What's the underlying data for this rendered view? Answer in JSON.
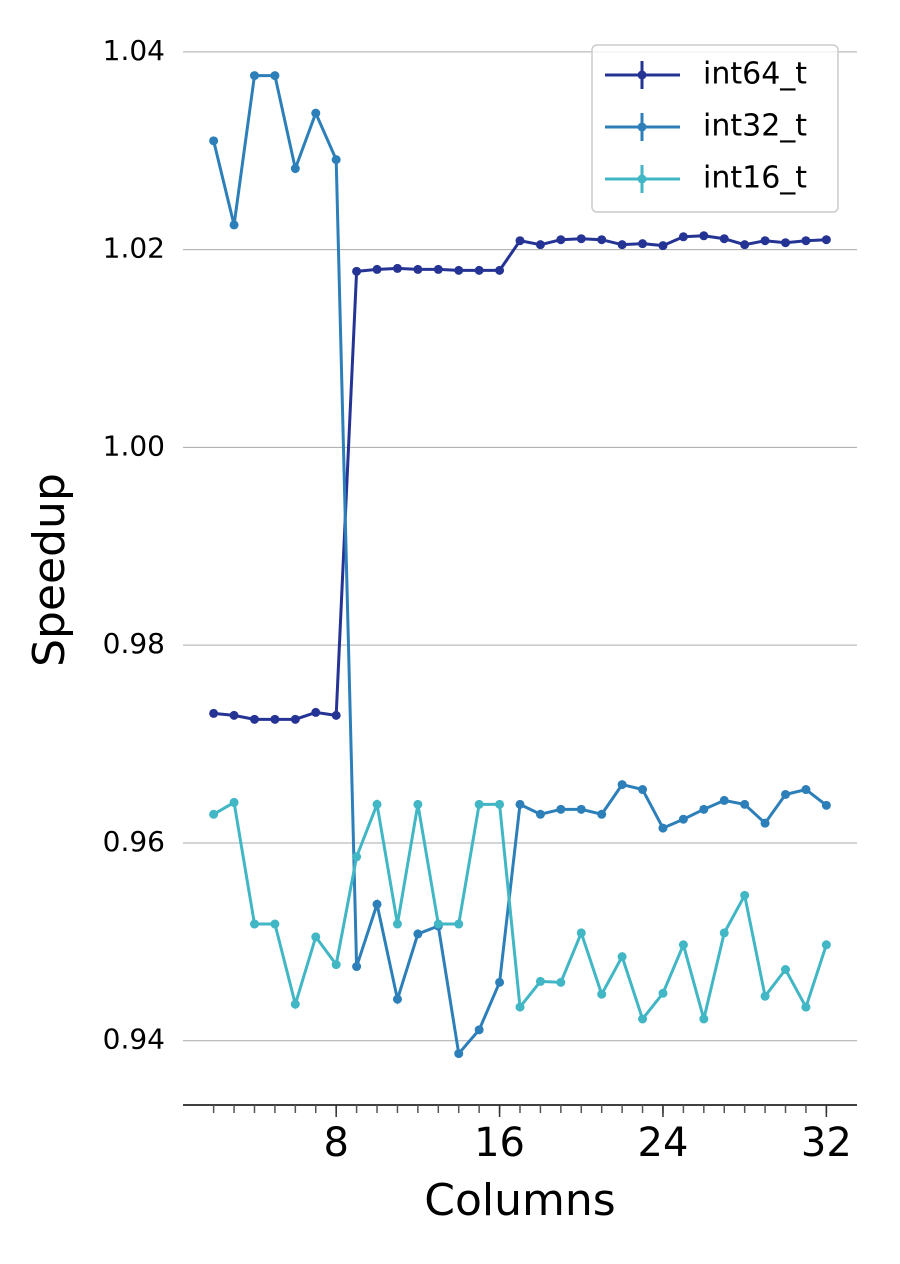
{
  "chart_data": {
    "type": "line",
    "xlabel": "Columns",
    "ylabel": "Speedup",
    "x": [
      2,
      3,
      4,
      5,
      6,
      7,
      8,
      9,
      10,
      11,
      12,
      13,
      14,
      15,
      16,
      17,
      18,
      19,
      20,
      21,
      22,
      23,
      24,
      25,
      26,
      27,
      28,
      29,
      30,
      31,
      32
    ],
    "series": [
      {
        "name": "int64_t",
        "color": "#253494",
        "values": [
          0.9731,
          0.9729,
          0.9725,
          0.9725,
          0.9725,
          0.9732,
          0.9729,
          1.0178,
          1.018,
          1.0181,
          1.018,
          1.018,
          1.0179,
          1.0179,
          1.0179,
          1.0209,
          1.0205,
          1.021,
          1.0211,
          1.021,
          1.0205,
          1.0206,
          1.0204,
          1.0213,
          1.0214,
          1.0211,
          1.0205,
          1.0209,
          1.0207,
          1.0209,
          1.021
        ]
      },
      {
        "name": "int32_t",
        "color": "#2c7fb8",
        "values": [
          1.031,
          1.0225,
          1.0376,
          1.0376,
          1.0282,
          1.0338,
          1.0291,
          0.9475,
          0.9538,
          0.9442,
          0.9508,
          0.9516,
          0.9387,
          0.9411,
          0.9459,
          0.9639,
          0.9629,
          0.9634,
          0.9634,
          0.9629,
          0.9659,
          0.9654,
          0.9615,
          0.9624,
          0.9634,
          0.9643,
          0.9639,
          0.962,
          0.9649,
          0.9654,
          0.9638
        ]
      },
      {
        "name": "int16_t",
        "color": "#41b6c4",
        "values": [
          0.9629,
          0.9641,
          0.9518,
          0.9518,
          0.9437,
          0.9505,
          0.9477,
          0.9586,
          0.9639,
          0.9518,
          0.9639,
          0.9518,
          0.9518,
          0.9639,
          0.9639,
          0.9434,
          0.946,
          0.9459,
          0.9509,
          0.9447,
          0.9485,
          0.9422,
          0.9448,
          0.9497,
          0.9422,
          0.9509,
          0.9547,
          0.9445,
          0.9472,
          0.9434,
          0.9497
        ]
      }
    ],
    "xlim": [
      0.5,
      33.5
    ],
    "xticks": [
      8,
      16,
      24,
      32
    ],
    "xticks_minor": [
      2,
      3,
      4,
      5,
      6,
      7,
      8,
      9,
      10,
      11,
      12,
      13,
      14,
      15,
      16,
      17,
      18,
      19,
      20,
      21,
      22,
      23,
      24,
      25,
      26,
      27,
      28,
      29,
      30,
      31,
      32
    ],
    "ylim": [
      0.9335,
      1.0415
    ],
    "yticks": [
      0.94,
      0.96,
      0.98,
      {
        "value": 1.0,
        "label": "1.00"
      },
      1.02,
      1.04
    ],
    "grid": true,
    "legend": "upper right"
  }
}
